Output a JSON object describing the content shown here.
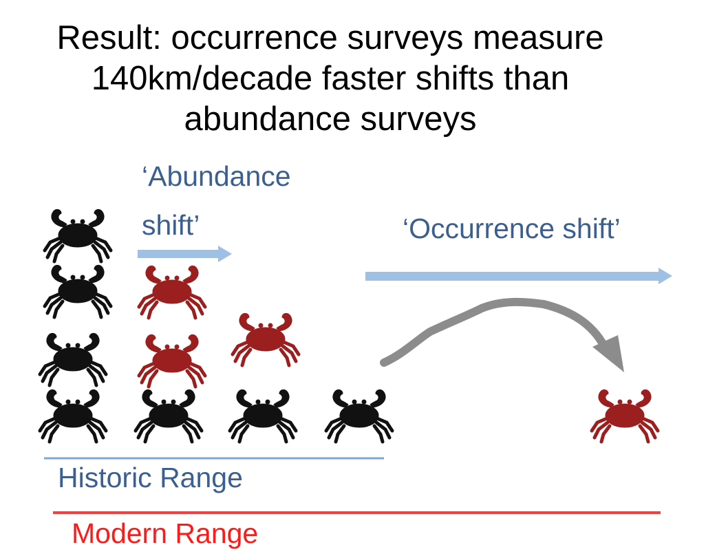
{
  "slide": {
    "title_lines": [
      "Result: occurrence surveys measure",
      "140km/decade faster shifts than",
      "abundance surveys"
    ]
  },
  "labels": {
    "abundance_shift_line1": "‘Abundance",
    "abundance_shift_line2": "shift’",
    "occurrence_shift": "‘Occurrence shift’",
    "historic_range": "Historic Range",
    "modern_range": "Modern Range"
  },
  "colors": {
    "title_text": "#000000",
    "label_blue": "#3b5f8f",
    "arrow_blue": "#9dc0e4",
    "historic_line": "#7ea6d6",
    "modern_line": "#ff3b3b",
    "modern_text": "#ff1a1a",
    "crab_historic": "#111111",
    "crab_modern": "#9b1f1f",
    "curve_arrow": "#8c8c8c"
  },
  "icons": {
    "crab": "crab-icon",
    "arrow": "arrow-right-icon",
    "curved_arrow": "curved-arrow-icon"
  }
}
